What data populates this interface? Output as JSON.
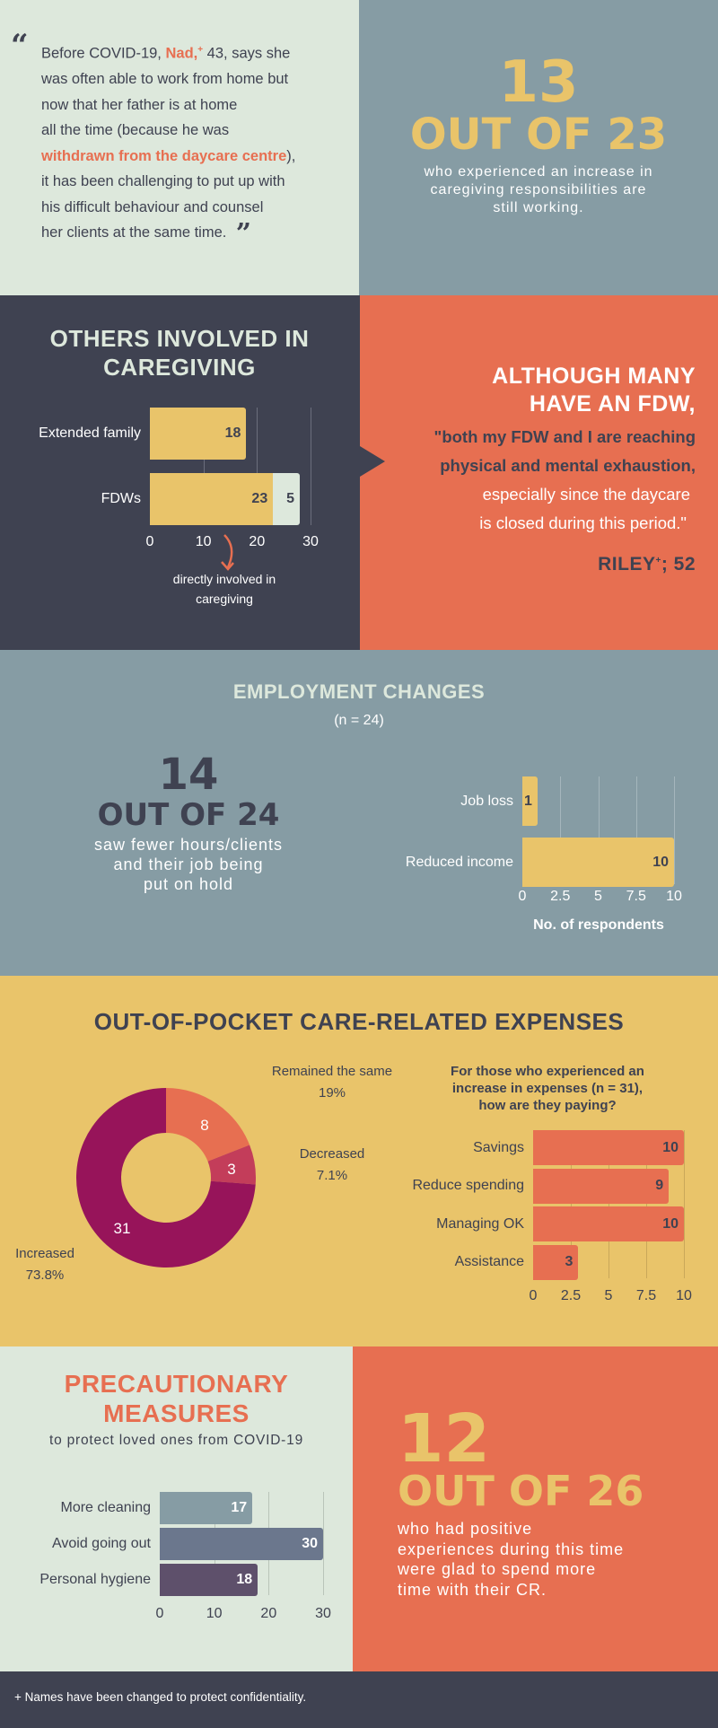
{
  "colors": {
    "light": "#dde8dc",
    "slate": "#869ca4",
    "dark": "#3f4251",
    "orange": "#e76f51",
    "yellow": "#e9c46a",
    "purple": "#97145a",
    "crimson": "#c33d5a"
  },
  "quote": {
    "open_icon": "open-quote-icon",
    "close_icon": "close-quote-icon",
    "l1a": "Before COVID-19, ",
    "name": "Nad,",
    "dagger": "+",
    "l1b": " 43, says she",
    "l2": "was often able to work from home but",
    "l3": "now that her father is at home",
    "l4": "all the time (because he was",
    "l5a": "withdrawn from the daycare centre",
    "l5b": "),",
    "l6": "it has been challenging to put up with",
    "l7": "his difficult behaviour and counsel",
    "l8": "her clients at the same time."
  },
  "stat1": {
    "number": "13",
    "out_of": "OUT OF 23",
    "l1": "who experienced an increase in",
    "l2": "caregiving responsibilities are",
    "l3": "still working."
  },
  "others": {
    "title1": "OTHERS INVOLVED IN",
    "title2": "CAREGIVING",
    "note1": "directly involved in",
    "note2": "caregiving"
  },
  "riley": {
    "h1": "ALTHOUGH MANY",
    "h2": "HAVE AN FDW,",
    "q1": "\"both my FDW and I are reaching",
    "q2": "physical and mental exhaustion,",
    "q3": "especially since the daycare",
    "q4": "is closed during this period.\"",
    "name": "RILEY",
    "dagger": "+",
    "age": "; 52"
  },
  "employment": {
    "title": "EMPLOYMENT CHANGES",
    "n": "(n = 24)",
    "number": "14",
    "out_of": "OUT OF 24",
    "l1": "saw fewer hours/clients",
    "l2": "and their job being",
    "l3": "put on hold"
  },
  "expenses": {
    "title": "OUT-OF-POCKET CARE-RELATED EXPENSES",
    "q1": "For those who experienced an",
    "q2": "increase in expenses (n = 31),",
    "q3": "how are they paying?"
  },
  "precaution": {
    "title1": "PRECAUTIONARY",
    "title2": "MEASURES",
    "sub": "to protect loved ones from COVID-19"
  },
  "stat2": {
    "number": "12",
    "out_of": "OUT OF 26",
    "l1": "who had positive",
    "l2": "experiences during this time",
    "l3": "were glad to spend more",
    "l4": "time with their CR."
  },
  "footer": {
    "text": "+ Names have been changed to protect confidentiality."
  },
  "chart_data": [
    {
      "type": "bar",
      "orientation": "horizontal",
      "stacked": true,
      "categories": [
        "Extended family",
        "FDWs"
      ],
      "series": [
        {
          "values": [
            18,
            23
          ],
          "color": "#e9c46a"
        },
        {
          "values": [
            0,
            5
          ],
          "color": "#dde8dc"
        }
      ],
      "xticks": [
        "0",
        "10",
        "20",
        "30"
      ],
      "xlim": [
        0,
        30
      ],
      "annotation": "directly involved in caregiving"
    },
    {
      "type": "bar",
      "orientation": "horizontal",
      "categories": [
        "Job loss",
        "Reduced income"
      ],
      "values": [
        1,
        10
      ],
      "color": "#e9c46a",
      "xticks": [
        "0",
        "2.5",
        "5",
        "7.5",
        "10"
      ],
      "xlim": [
        0,
        10
      ],
      "xlabel": "No. of respondents"
    },
    {
      "type": "pie",
      "donut": true,
      "categories": [
        "Remained the same",
        "Decreased",
        "Increased"
      ],
      "values": [
        8,
        3,
        31
      ],
      "percent_labels": [
        "19%",
        "7.1%",
        "73.8%"
      ],
      "colors": [
        "#e76f51",
        "#c33d5a",
        "#97145a"
      ]
    },
    {
      "type": "bar",
      "orientation": "horizontal",
      "title": "For those who experienced an increase in expenses (n = 31), how are they paying?",
      "categories": [
        "Savings",
        "Reduce spending",
        "Managing OK",
        "Assistance"
      ],
      "values": [
        10,
        9,
        10,
        3
      ],
      "color": "#e76f51",
      "xticks": [
        "0",
        "2.5",
        "5",
        "7.5",
        "10"
      ],
      "xlim": [
        0,
        10
      ]
    },
    {
      "type": "bar",
      "orientation": "horizontal",
      "categories": [
        "More cleaning",
        "Avoid going out",
        "Personal hygiene"
      ],
      "values": [
        17,
        30,
        18
      ],
      "colors": [
        "#869ca4",
        "#6b778d",
        "#5e506b"
      ],
      "xticks": [
        "0",
        "10",
        "20",
        "30"
      ],
      "xlim": [
        0,
        30
      ]
    }
  ]
}
